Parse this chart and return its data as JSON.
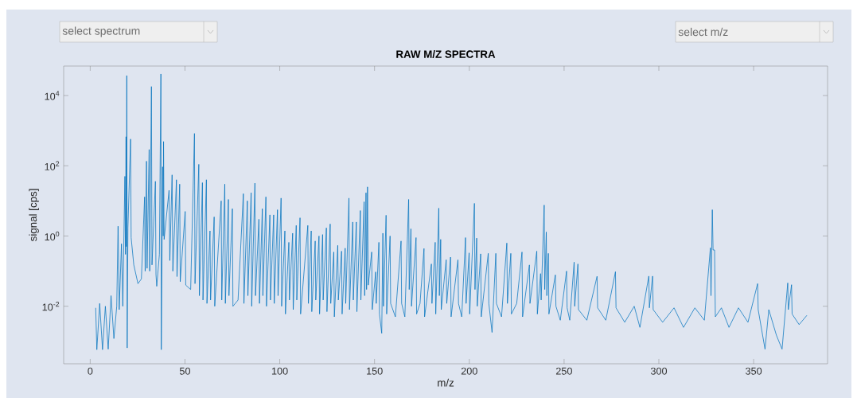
{
  "chart_data": {
    "type": "line",
    "title": "RAW M/Z SPECTRA",
    "xlabel": "m/z",
    "ylabel": "signal [cps]",
    "color": "#0072bd",
    "log": "y",
    "xlim": [
      -14,
      389
    ],
    "ylim": [
      0.00023,
      69000
    ],
    "xticks": [
      0,
      50,
      100,
      150,
      200,
      250,
      300,
      350
    ],
    "yticks": [
      {
        "value": 0.01,
        "label": "10$^{-2}$"
      },
      {
        "value": 1,
        "label": "10$^{0}$"
      },
      {
        "value": 100,
        "label": "10$^{2}$"
      },
      {
        "value": 10000,
        "label": "10$^{4}$"
      }
    ],
    "annotations": [
      "select spectrum",
      "select m/z"
    ],
    "x": [
      2.9,
      3.5,
      5,
      6.5,
      8,
      9.5,
      11,
      12.5,
      14,
      14.7,
      15.3,
      16.5,
      17.2,
      18.3,
      18.6,
      18.9,
      19.1,
      19.3,
      19.5,
      19.9,
      21.3,
      21.6,
      23,
      25.2,
      27,
      28.7,
      29,
      29.7,
      30,
      31.1,
      31.4,
      32.3,
      32.6,
      34.4,
      34.7,
      35.1,
      36.5,
      37.3,
      37.5,
      38.0,
      38.2,
      38.5,
      38.7,
      39,
      41.6,
      42,
      43.2,
      43.6,
      45.5,
      45.8,
      47.2,
      47.5,
      50.1,
      50.4,
      53,
      55,
      55.3,
      57.3,
      57.6,
      59.2,
      59.5,
      61.3,
      61.6,
      63.2,
      63.5,
      65.4,
      65.7,
      69.1,
      69.4,
      71,
      71.3,
      72.9,
      73.2,
      75,
      75.3,
      78,
      80.8,
      81.1,
      82.9,
      83.2,
      84.9,
      85.2,
      86.9,
      87.2,
      89,
      89.3,
      90.8,
      91.1,
      92.7,
      93,
      94.8,
      95.1,
      96.8,
      97.1,
      98.8,
      99.1,
      100.7,
      101,
      102.7,
      103,
      104.8,
      105.1,
      106.8,
      107.1,
      108.7,
      109,
      110.7,
      111,
      114.8,
      115.1,
      116.6,
      116.9,
      118.7,
      119,
      120.7,
      121,
      122.6,
      122.9,
      124.6,
      124.9,
      126.6,
      126.9,
      128.5,
      128.8,
      130.6,
      130.9,
      132.6,
      132.9,
      134.5,
      134.8,
      136.5,
      136.8,
      138.5,
      138.8,
      140.4,
      140.7,
      142.5,
      142.8,
      144.5,
      144.8,
      145.5,
      145.8,
      146.3,
      146.7,
      148.5,
      148.8,
      150.6,
      150.9,
      152.3,
      152.6,
      153.8,
      154.4,
      154.7,
      156.1,
      156.4,
      158.2,
      158.5,
      161,
      164,
      164.3,
      166,
      168,
      168.3,
      169.2,
      169.5,
      171.9,
      172.2,
      174,
      176.1,
      176.4,
      180,
      180.3,
      182,
      182.3,
      183.9,
      184.2,
      184.9,
      185.2,
      187.8,
      188.1,
      190.1,
      190.4,
      194,
      194.3,
      196,
      198,
      198.3,
      199.9,
      200.2,
      202.7,
      203,
      203.9,
      204.2,
      206,
      206.3,
      210,
      210.3,
      212,
      214,
      214.3,
      217,
      219.8,
      220.1,
      221.9,
      222.2,
      225,
      227.8,
      228.1,
      231.7,
      232,
      235.6,
      235.9,
      237.6,
      237.9,
      239.5,
      239.8,
      240.6,
      240.9,
      241.7,
      242,
      245.4,
      245.7,
      248,
      251.3,
      251.6,
      253,
      255.3,
      255.6,
      257.3,
      257.6,
      262,
      267.4,
      267.7,
      272,
      277.1,
      277.4,
      282,
      287,
      290,
      294.7,
      295,
      296.7,
      297,
      302,
      308,
      313,
      319,
      324,
      327.2,
      327.5,
      328.2,
      328.6,
      329.4,
      329.8,
      333,
      337,
      342,
      347,
      352.1,
      352.4,
      356,
      358,
      362,
      365,
      368,
      368.3,
      370,
      370.3,
      374,
      378.1
    ],
    "values": [
      0.009,
      0.00058,
      0.012,
      0.00058,
      0.01,
      0.0006,
      0.02,
      0.0012,
      0.01,
      1.9,
      0.008,
      0.6,
      0.01,
      50,
      0.3,
      670,
      0.5,
      37000,
      0.00065,
      1.7,
      575,
      0.9,
      0.15,
      0.044,
      0.06,
      13,
      0.1,
      135,
      0.12,
      290,
      0.1,
      18000,
      0.15,
      36,
      0.08,
      0.037,
      0.3,
      41000,
      0.00058,
      1.2,
      93,
      1.0,
      490,
      0.8,
      20,
      0.2,
      55,
      0.1,
      40,
      0.07,
      30,
      0.05,
      5,
      0.04,
      0.03,
      830,
      0.044,
      110,
      0.02,
      33,
      0.015,
      40,
      0.012,
      1.4,
      0.015,
      3.5,
      0.01,
      10,
      0.015,
      30,
      0.012,
      11,
      0.02,
      6,
      0.01,
      0.015,
      16,
      0.012,
      10,
      0.02,
      17,
      0.01,
      32,
      0.02,
      3,
      0.012,
      6,
      0.02,
      13,
      0.01,
      4,
      0.015,
      4,
      0.012,
      5.6,
      0.02,
      12,
      0.01,
      1.4,
      0.006,
      0.66,
      0.015,
      1.2,
      0.008,
      2,
      0.015,
      3.3,
      0.006,
      2,
      0.012,
      1.4,
      0.007,
      0.72,
      0.015,
      1,
      0.006,
      1.1,
      0.015,
      1.7,
      0.007,
      2.2,
      0.012,
      0.35,
      0.005,
      0.54,
      0.015,
      0.37,
      0.006,
      0.45,
      0.012,
      12,
      0.008,
      2.5,
      0.015,
      2.5,
      0.007,
      5.3,
      0.015,
      9.4,
      0.02,
      17,
      0.03,
      25,
      0.04,
      0.35,
      0.008,
      0.095,
      0.012,
      0.66,
      0.006,
      0.0017,
      1.2,
      0.01,
      3.9,
      0.006,
      1,
      0.012,
      0.005,
      0.72,
      0.012,
      0.005,
      11,
      0.03,
      1.6,
      0.01,
      0.9,
      0.006,
      0.012,
      0.44,
      0.005,
      0.16,
      0.012,
      0.66,
      0.006,
      6.2,
      0.02,
      0.8,
      0.008,
      0.21,
      0.012,
      0.25,
      0.005,
      0.21,
      0.012,
      0.005,
      0.9,
      0.012,
      0.33,
      0.006,
      8.5,
      0.03,
      0.87,
      0.01,
      0.31,
      0.005,
      0.32,
      0.012,
      0.0018,
      0.32,
      0.012,
      0.005,
      0.63,
      0.012,
      0.32,
      0.006,
      0.012,
      0.35,
      0.005,
      0.15,
      0.012,
      0.37,
      0.006,
      0.085,
      0.015,
      7.6,
      0.03,
      1.3,
      0.02,
      0.32,
      0.006,
      0.078,
      0.01,
      0.004,
      0.1,
      0.009,
      0.004,
      0.18,
      0.01,
      0.16,
      0.008,
      0.004,
      0.071,
      0.009,
      0.004,
      0.096,
      0.009,
      0.0035,
      0.01,
      0.0025,
      0.072,
      0.009,
      0.072,
      0.008,
      0.0035,
      0.009,
      0.0025,
      0.009,
      0.004,
      0.46,
      0.02,
      5.6,
      0.4,
      0.4,
      0.005,
      0.009,
      0.0025,
      0.009,
      0.0035,
      0.044,
      0.008,
      0.0006,
      0.008,
      0.0015,
      0.0006,
      0.046,
      0.008,
      0.041,
      0.006,
      0.003,
      0.0055
    ]
  }
}
